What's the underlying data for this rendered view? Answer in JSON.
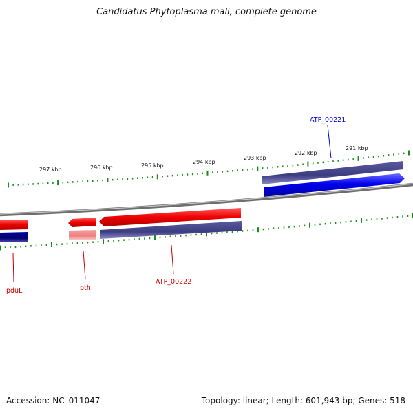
{
  "title": "Candidatus Phytoplasma mali, complete genome",
  "footer": {
    "accession": "Accession: NC_011047",
    "summary": "Topology: linear; Length: 601,943 bp; Genes: 518"
  },
  "scale_labels": [
    "291 kbp",
    "292 kbp",
    "293 kbp",
    "294 kbp",
    "295 kbp",
    "296 kbp",
    "297 kbp"
  ],
  "gene_labels": {
    "atp221": "ATP_00221",
    "atp222": "ATP_00222",
    "pth": "pth",
    "pdul": "pduL"
  },
  "colors": {
    "backbone": "#8a8a8a",
    "tick": "#1a8a1a",
    "forward_gene": "#0000ee",
    "reverse_gene": "#ee0000",
    "cds_purple": "#44448a",
    "cds_navy": "#000070",
    "pseudo_pink": "#f08888",
    "label_red": "#cc0000",
    "label_blue": "#0000cc"
  }
}
